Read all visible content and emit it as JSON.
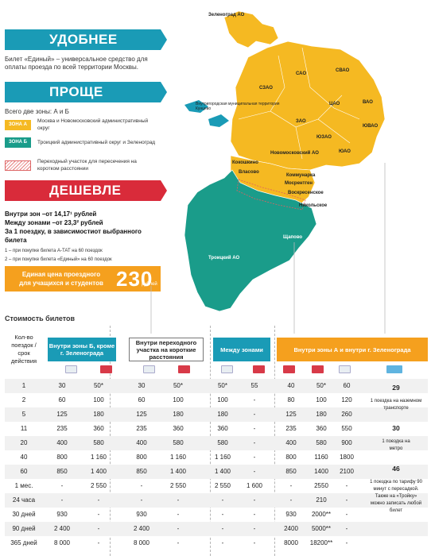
{
  "banners": {
    "b1": "УДОБНЕЕ",
    "b2": "ПРОЩЕ",
    "b3": "ДЕШЕВЛЕ"
  },
  "intro": {
    "line1": "Билет «Единый» – универсальное средство для",
    "line2": "оплаты проезда по всей территории Москвы."
  },
  "zones": {
    "heading": "Всего две зоны: А и Б",
    "a_tag": "ЗОНА А",
    "a_desc": "Москва и Новомосковский административный округ",
    "b_tag": "ЗОНА Б",
    "b_desc": "Троицкий административный округ и Зеленоград",
    "transfer_desc": "Переходный участок для пересечения на коротком расстоянии"
  },
  "prices": {
    "within": "Внутри зон –от 14,17¹ рублей",
    "between": "Между зонами –от 23,3² рублей",
    "per_trip": "За 1 поездку, в зависимостиот выбранного билета",
    "note1": "1 – при покупке билета А-ТАТ на 60 поездок",
    "note2": "2 – при покупке билета «Единый» на 60 поездок"
  },
  "promo": {
    "text": "Единая цена проездного для учащихся и студентов",
    "number": "230",
    "unit": "рублей"
  },
  "map": {
    "zelenograd": "Зеленоград АО",
    "sao": "САО",
    "svao": "СВАО",
    "zao": "ЗАО",
    "cao": "ЦАО",
    "vao": "ВАО",
    "yuvao": "ЮВАО",
    "yuzao": "ЮЗАО",
    "yuao": "ЮАО",
    "szao": "СЗАО",
    "kommunarka": "Коммунарка",
    "troitsk": "Троицкий АО",
    "moscow_area": "Москва",
    "novomoskovsk": "Новомосковский АО",
    "voskresenskoe": "Воскресенское",
    "nikolskoe": "Никольское",
    "shchapovo": "Щапово",
    "kokoshkino": "Кокошкино",
    "vlasovo": "Власово",
    "mosrentgen": "Мосрентген",
    "kuntsevo": "Внутригородская муниципальная территория Кунцево"
  },
  "table": {
    "title": "Стоимость билетов",
    "rowhead": "Кол-во поездок / срок действия",
    "col1": "Внутри зоны Б, кроме г. Зеленограда",
    "col2": "Внутри переходного участка на короткие расстояния",
    "col3": "Между зонами",
    "col4": "Внутри зоны А и внутри г. Зеленограда",
    "rows": [
      {
        "label": "1",
        "v": [
          "30",
          "50*",
          "30",
          "50*",
          "50*",
          "55",
          "40",
          "50*",
          "60"
        ]
      },
      {
        "label": "2",
        "v": [
          "60",
          "100",
          "60",
          "100",
          "100",
          "-",
          "80",
          "100",
          "120"
        ]
      },
      {
        "label": "5",
        "v": [
          "125",
          "180",
          "125",
          "180",
          "180",
          "-",
          "125",
          "180",
          "260"
        ]
      },
      {
        "label": "11",
        "v": [
          "235",
          "360",
          "235",
          "360",
          "360",
          "-",
          "235",
          "360",
          "550"
        ]
      },
      {
        "label": "20",
        "v": [
          "400",
          "580",
          "400",
          "580",
          "580",
          "-",
          "400",
          "580",
          "900"
        ]
      },
      {
        "label": "40",
        "v": [
          "800",
          "1 160",
          "800",
          "1 160",
          "1 160",
          "-",
          "800",
          "1160",
          "1800"
        ]
      },
      {
        "label": "60",
        "v": [
          "850",
          "1 400",
          "850",
          "1 400",
          "1 400",
          "-",
          "850",
          "1400",
          "2100"
        ]
      },
      {
        "label": "1 мес.",
        "v": [
          "-",
          "2 550",
          "-",
          "2 550",
          "2 550",
          "1 600",
          "-",
          "2550",
          "-"
        ]
      },
      {
        "label": "24 часа",
        "v": [
          "-",
          "-",
          "-",
          "-",
          "-",
          "-",
          "-",
          "210",
          "-"
        ]
      },
      {
        "label": "30 дней",
        "v": [
          "930",
          "-",
          "930",
          "-",
          "-",
          "-",
          "930",
          "2000**",
          "-"
        ]
      },
      {
        "label": "90 дней",
        "v": [
          "2 400",
          "-",
          "2 400",
          "-",
          "-",
          "-",
          "2400",
          "5000**",
          "-"
        ]
      },
      {
        "label": "365 дней",
        "v": [
          "8 000",
          "-",
          "8 000",
          "-",
          "-",
          "-",
          "8000",
          "18200**",
          "-"
        ]
      }
    ],
    "last": {
      "n1": "29",
      "t1": "1 поездка на наземном транспорте",
      "n2": "30",
      "t2": "1 поездка на метро",
      "n3": "46",
      "t3": "1 поездка по тарифу 90 минут с пересадкой. Также на «Тройку» можно записать любой билет"
    }
  }
}
